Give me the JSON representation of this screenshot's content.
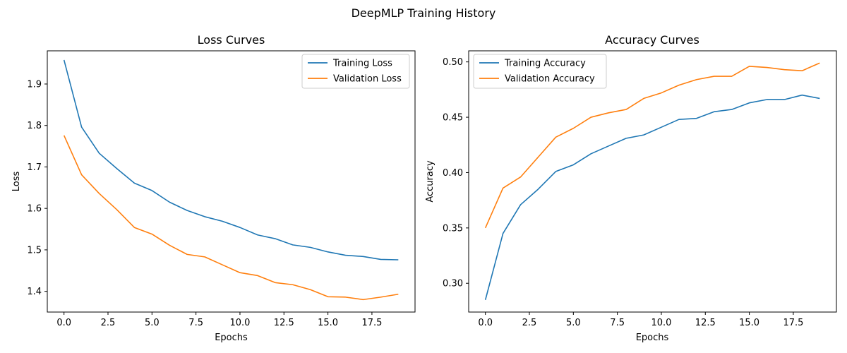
{
  "figure_title": "DeepMLP Training History",
  "colors": {
    "training": "#1f77b4",
    "validation": "#ff7f0e",
    "axes": "#000000",
    "legend_border": "#cccccc"
  },
  "chart_data": [
    {
      "type": "line",
      "title": "Loss Curves",
      "xlabel": "Epochs",
      "ylabel": "Loss",
      "x": [
        0,
        1,
        2,
        3,
        4,
        5,
        6,
        7,
        8,
        9,
        10,
        11,
        12,
        13,
        14,
        15,
        16,
        17,
        18,
        19
      ],
      "xlim": [
        -0.95,
        19.95
      ],
      "ylim": [
        1.35,
        1.98
      ],
      "xticks": [
        0,
        2.5,
        5,
        7.5,
        10,
        12.5,
        15,
        17.5
      ],
      "xtick_labels": [
        "0.0",
        "2.5",
        "5.0",
        "7.5",
        "10.0",
        "12.5",
        "15.0",
        "17.5"
      ],
      "yticks": [
        1.4,
        1.5,
        1.6,
        1.7,
        1.8,
        1.9
      ],
      "ytick_labels": [
        "1.4",
        "1.5",
        "1.6",
        "1.7",
        "1.8",
        "1.9"
      ],
      "grid": false,
      "legend": "upper right",
      "series": [
        {
          "name": "Training Loss",
          "color": "#1f77b4",
          "values": [
            1.958,
            1.796,
            1.733,
            1.696,
            1.661,
            1.643,
            1.615,
            1.595,
            1.58,
            1.569,
            1.554,
            1.536,
            1.527,
            1.512,
            1.506,
            1.495,
            1.487,
            1.484,
            1.477,
            1.476
          ]
        },
        {
          "name": "Validation Loss",
          "color": "#ff7f0e",
          "values": [
            1.776,
            1.681,
            1.636,
            1.597,
            1.554,
            1.538,
            1.511,
            1.489,
            1.483,
            1.464,
            1.445,
            1.438,
            1.421,
            1.416,
            1.404,
            1.387,
            1.386,
            1.38,
            1.386,
            1.393
          ]
        }
      ]
    },
    {
      "type": "line",
      "title": "Accuracy Curves",
      "xlabel": "Epochs",
      "ylabel": "Accuracy",
      "x": [
        0,
        1,
        2,
        3,
        4,
        5,
        6,
        7,
        8,
        9,
        10,
        11,
        12,
        13,
        14,
        15,
        16,
        17,
        18,
        19
      ],
      "xlim": [
        -0.95,
        19.95
      ],
      "ylim": [
        0.274,
        0.51
      ],
      "xticks": [
        0,
        2.5,
        5,
        7.5,
        10,
        12.5,
        15,
        17.5
      ],
      "xtick_labels": [
        "0.0",
        "2.5",
        "5.0",
        "7.5",
        "10.0",
        "12.5",
        "15.0",
        "17.5"
      ],
      "yticks": [
        0.3,
        0.35,
        0.4,
        0.45,
        0.5
      ],
      "ytick_labels": [
        "0.30",
        "0.35",
        "0.40",
        "0.45",
        "0.50"
      ],
      "grid": false,
      "legend": "upper left",
      "series": [
        {
          "name": "Training Accuracy",
          "color": "#1f77b4",
          "values": [
            0.285,
            0.345,
            0.371,
            0.385,
            0.401,
            0.407,
            0.417,
            0.424,
            0.431,
            0.434,
            0.441,
            0.448,
            0.449,
            0.455,
            0.457,
            0.463,
            0.466,
            0.466,
            0.47,
            0.467
          ]
        },
        {
          "name": "Validation Accuracy",
          "color": "#ff7f0e",
          "values": [
            0.35,
            0.386,
            0.396,
            0.414,
            0.432,
            0.44,
            0.45,
            0.454,
            0.457,
            0.467,
            0.472,
            0.479,
            0.484,
            0.487,
            0.487,
            0.496,
            0.495,
            0.493,
            0.492,
            0.499
          ]
        }
      ]
    }
  ]
}
